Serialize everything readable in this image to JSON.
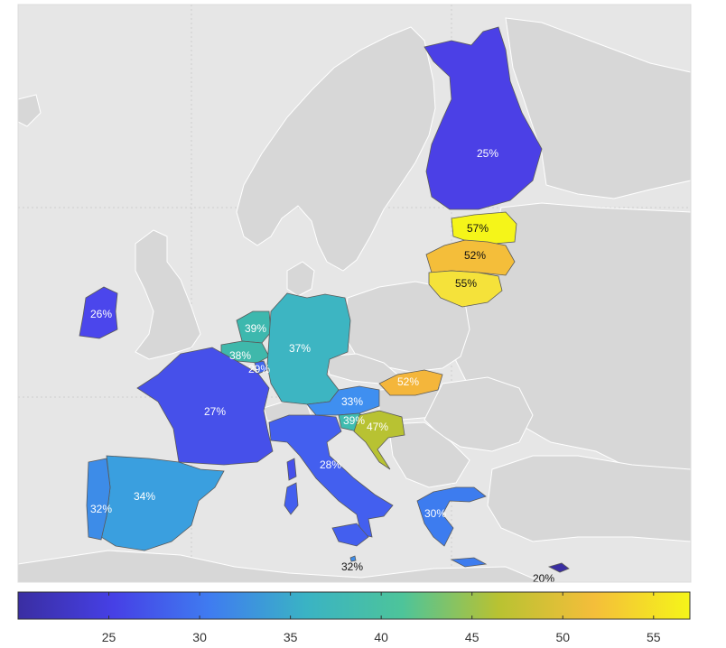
{
  "map": {
    "colors": {
      "sea": "#e6e6e6",
      "land": "#d6d6d6",
      "border": "#ffffff",
      "grid": "#c4c4c4"
    },
    "countries": [
      {
        "id": "finland",
        "label": "25%",
        "value": 25,
        "fill": "#4b40e6",
        "text_color": "#ffffff"
      },
      {
        "id": "estonia",
        "label": "57%",
        "value": 57,
        "fill": "#f5f519",
        "text_color": "#111111"
      },
      {
        "id": "latvia",
        "label": "52%",
        "value": 52,
        "fill": "#f4be3a",
        "text_color": "#111111"
      },
      {
        "id": "lithuania",
        "label": "55%",
        "value": 55,
        "fill": "#f5e23a",
        "text_color": "#111111"
      },
      {
        "id": "ireland",
        "label": "26%",
        "value": 26,
        "fill": "#4b46ec",
        "text_color": "#ffffff"
      },
      {
        "id": "netherlands",
        "label": "39%",
        "value": 39,
        "fill": "#3db8ae",
        "text_color": "#ffffff"
      },
      {
        "id": "belgium",
        "label": "38%",
        "value": 38,
        "fill": "#3fb8ab",
        "text_color": "#ffffff"
      },
      {
        "id": "luxembourg",
        "label": "29%",
        "value": 29,
        "fill": "#3f66f0",
        "text_color": "#ffffff"
      },
      {
        "id": "germany",
        "label": "37%",
        "value": 37,
        "fill": "#3db5c2",
        "text_color": "#ffffff"
      },
      {
        "id": "france",
        "label": "27%",
        "value": 27,
        "fill": "#4650ea",
        "text_color": "#ffffff"
      },
      {
        "id": "austria",
        "label": "33%",
        "value": 33,
        "fill": "#3f8ff0",
        "text_color": "#ffffff"
      },
      {
        "id": "slovakia",
        "label": "52%",
        "value": 52,
        "fill": "#f4b63b",
        "text_color": "#ffffff"
      },
      {
        "id": "slovenia",
        "label": "39%",
        "value": 39,
        "fill": "#3fbcb0",
        "text_color": "#ffffff"
      },
      {
        "id": "croatia",
        "label": "47%",
        "value": 47,
        "fill": "#b8c232",
        "text_color": "#ffffff"
      },
      {
        "id": "italy",
        "label": "28%",
        "value": 28,
        "fill": "#435fef",
        "text_color": "#ffffff"
      },
      {
        "id": "spain",
        "label": "34%",
        "value": 34,
        "fill": "#3a9fdf",
        "text_color": "#ffffff"
      },
      {
        "id": "portugal",
        "label": "32%",
        "value": 32,
        "fill": "#3d8ce8",
        "text_color": "#ffffff"
      },
      {
        "id": "greece",
        "label": "30%",
        "value": 30,
        "fill": "#3d7cef",
        "text_color": "#ffffff"
      },
      {
        "id": "malta",
        "label": "32%",
        "value": 32,
        "fill": "#3d8ce8",
        "text_color": "#111111"
      },
      {
        "id": "cyprus",
        "label": "20%",
        "value": 20,
        "fill": "#3a2ea2",
        "text_color": "#111111"
      }
    ]
  },
  "colorbar": {
    "min": 20,
    "max": 57,
    "ticks": [
      "25",
      "30",
      "35",
      "40",
      "45",
      "50",
      "55"
    ],
    "tick_values": [
      25,
      30,
      35,
      40,
      45,
      50,
      55
    ],
    "stops": [
      "#3a2ea2",
      "#4640e6",
      "#3f7cf0",
      "#3ab3c4",
      "#4dc49a",
      "#b8c232",
      "#f4be3a",
      "#f5f519"
    ]
  }
}
